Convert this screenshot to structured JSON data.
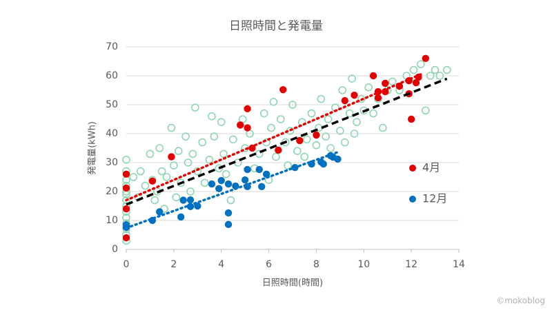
{
  "chart_data": {
    "type": "scatter",
    "title": "日照時間と発電量",
    "x_label": "日照時間(時間)",
    "y_label": "発電量(kWh)",
    "xlim": [
      0,
      14
    ],
    "xticks": [
      0,
      2,
      4,
      6,
      8,
      10,
      12,
      14
    ],
    "ylim": [
      0,
      70
    ],
    "yticks": [
      0,
      10,
      20,
      30,
      40,
      50,
      60,
      70
    ],
    "grid": true,
    "legend": "lower right",
    "series": [
      {
        "color": "#8fd6b0",
        "hollow": true,
        "x": [
          0,
          0,
          0,
          0,
          0,
          0,
          0,
          0,
          0,
          0,
          0,
          0,
          0,
          0,
          0.3,
          0.5,
          0.6,
          0.8,
          1.0,
          1.1,
          1.2,
          1.3,
          1.4,
          1.5,
          1.6,
          1.7,
          1.9,
          2.0,
          2.1,
          2.2,
          2.3,
          2.5,
          2.6,
          2.7,
          2.8,
          2.9,
          3.0,
          3.2,
          3.3,
          3.5,
          3.6,
          3.7,
          3.9,
          4.0,
          4.1,
          4.2,
          4.4,
          4.5,
          4.7,
          4.9,
          5.0,
          5.2,
          5.4,
          5.6,
          5.8,
          5.9,
          6.0,
          6.1,
          6.2,
          6.3,
          6.5,
          6.7,
          6.8,
          6.9,
          7.0,
          7.2,
          7.4,
          7.5,
          7.6,
          7.8,
          8.0,
          8.1,
          8.2,
          8.4,
          8.5,
          8.6,
          8.8,
          9.0,
          9.1,
          9.2,
          9.4,
          9.5,
          9.6,
          9.7,
          9.9,
          10.0,
          10.2,
          10.4,
          10.6,
          10.8,
          11.0,
          11.2,
          11.5,
          11.8,
          12.1,
          12.4,
          12.6,
          12.8,
          13.0,
          13.2,
          13.5
        ],
        "values": [
          3,
          5,
          7,
          9,
          11,
          13,
          15,
          17,
          19,
          20,
          22,
          24,
          27,
          31,
          25,
          18,
          27,
          22,
          33,
          24,
          17,
          20,
          35,
          27,
          14,
          25,
          42,
          29,
          18,
          34,
          23,
          39,
          30,
          20,
          33,
          49,
          27,
          37,
          23,
          31,
          46,
          39,
          28,
          44,
          33,
          26,
          17,
          38,
          30,
          45,
          35,
          40,
          28,
          33,
          47,
          37,
          24,
          42,
          51,
          32,
          45,
          37,
          29,
          41,
          50,
          34,
          44,
          32,
          38,
          47,
          36,
          42,
          52,
          39,
          45,
          35,
          49,
          41,
          55,
          37,
          47,
          59,
          40,
          44,
          52,
          48,
          56,
          47,
          52,
          42,
          55,
          58,
          55,
          60,
          62,
          64,
          48,
          60,
          62,
          60,
          62
        ]
      },
      {
        "name": "4月",
        "color": "#e50000",
        "x": [
          0,
          0,
          0,
          0,
          0,
          1.1,
          1.9,
          4.8,
          5.1,
          5.1,
          5.3,
          6.4,
          6.6,
          7.3,
          8.0,
          9.2,
          9.6,
          10.4,
          10.6,
          10.6,
          10.9,
          10.9,
          11.5,
          11.9,
          12.0,
          11.9,
          12.2,
          12.3,
          12.6
        ],
        "values": [
          21.2,
          26,
          14,
          4,
          8,
          23.6,
          32,
          43,
          48.6,
          42,
          35,
          34.3,
          55.2,
          37.6,
          39.5,
          51.4,
          53.3,
          60,
          52.4,
          54.5,
          57.4,
          54.5,
          56.4,
          58.3,
          45,
          53.8,
          57.6,
          59.5,
          66
        ]
      },
      {
        "name": "12月",
        "color": "#0070c0",
        "x": [
          0,
          0,
          1.1,
          1.4,
          2.3,
          2.4,
          2.7,
          2.7,
          3.0,
          3.6,
          3.9,
          4.0,
          4.3,
          4.3,
          4.3,
          4.6,
          5.0,
          5.1,
          5.1,
          5.6,
          5.7,
          5.9,
          7.1,
          7.8,
          8.2,
          8.3,
          8.6,
          8.7,
          8.9
        ],
        "values": [
          7.6,
          8.5,
          10,
          13,
          11.2,
          17,
          17.1,
          14.8,
          15,
          22.6,
          21,
          23.8,
          12.6,
          8.6,
          22.6,
          21.9,
          24,
          27.6,
          21.7,
          27.6,
          21.7,
          26,
          28.3,
          29.5,
          30.2,
          29.5,
          32.4,
          31.9,
          31.2
        ]
      }
    ],
    "trendlines": [
      {
        "color": "#e50000",
        "style": "dotted",
        "x": [
          0,
          12.4
        ],
        "values": [
          17,
          60.5
        ]
      },
      {
        "color": "#000000",
        "style": "dashed",
        "x": [
          0,
          13.5
        ],
        "values": [
          15.5,
          59
        ]
      },
      {
        "color": "#0070c0",
        "style": "dotted",
        "x": [
          0,
          8.9
        ],
        "values": [
          7.4,
          33.6
        ]
      }
    ]
  },
  "watermark": "©mokoblog"
}
